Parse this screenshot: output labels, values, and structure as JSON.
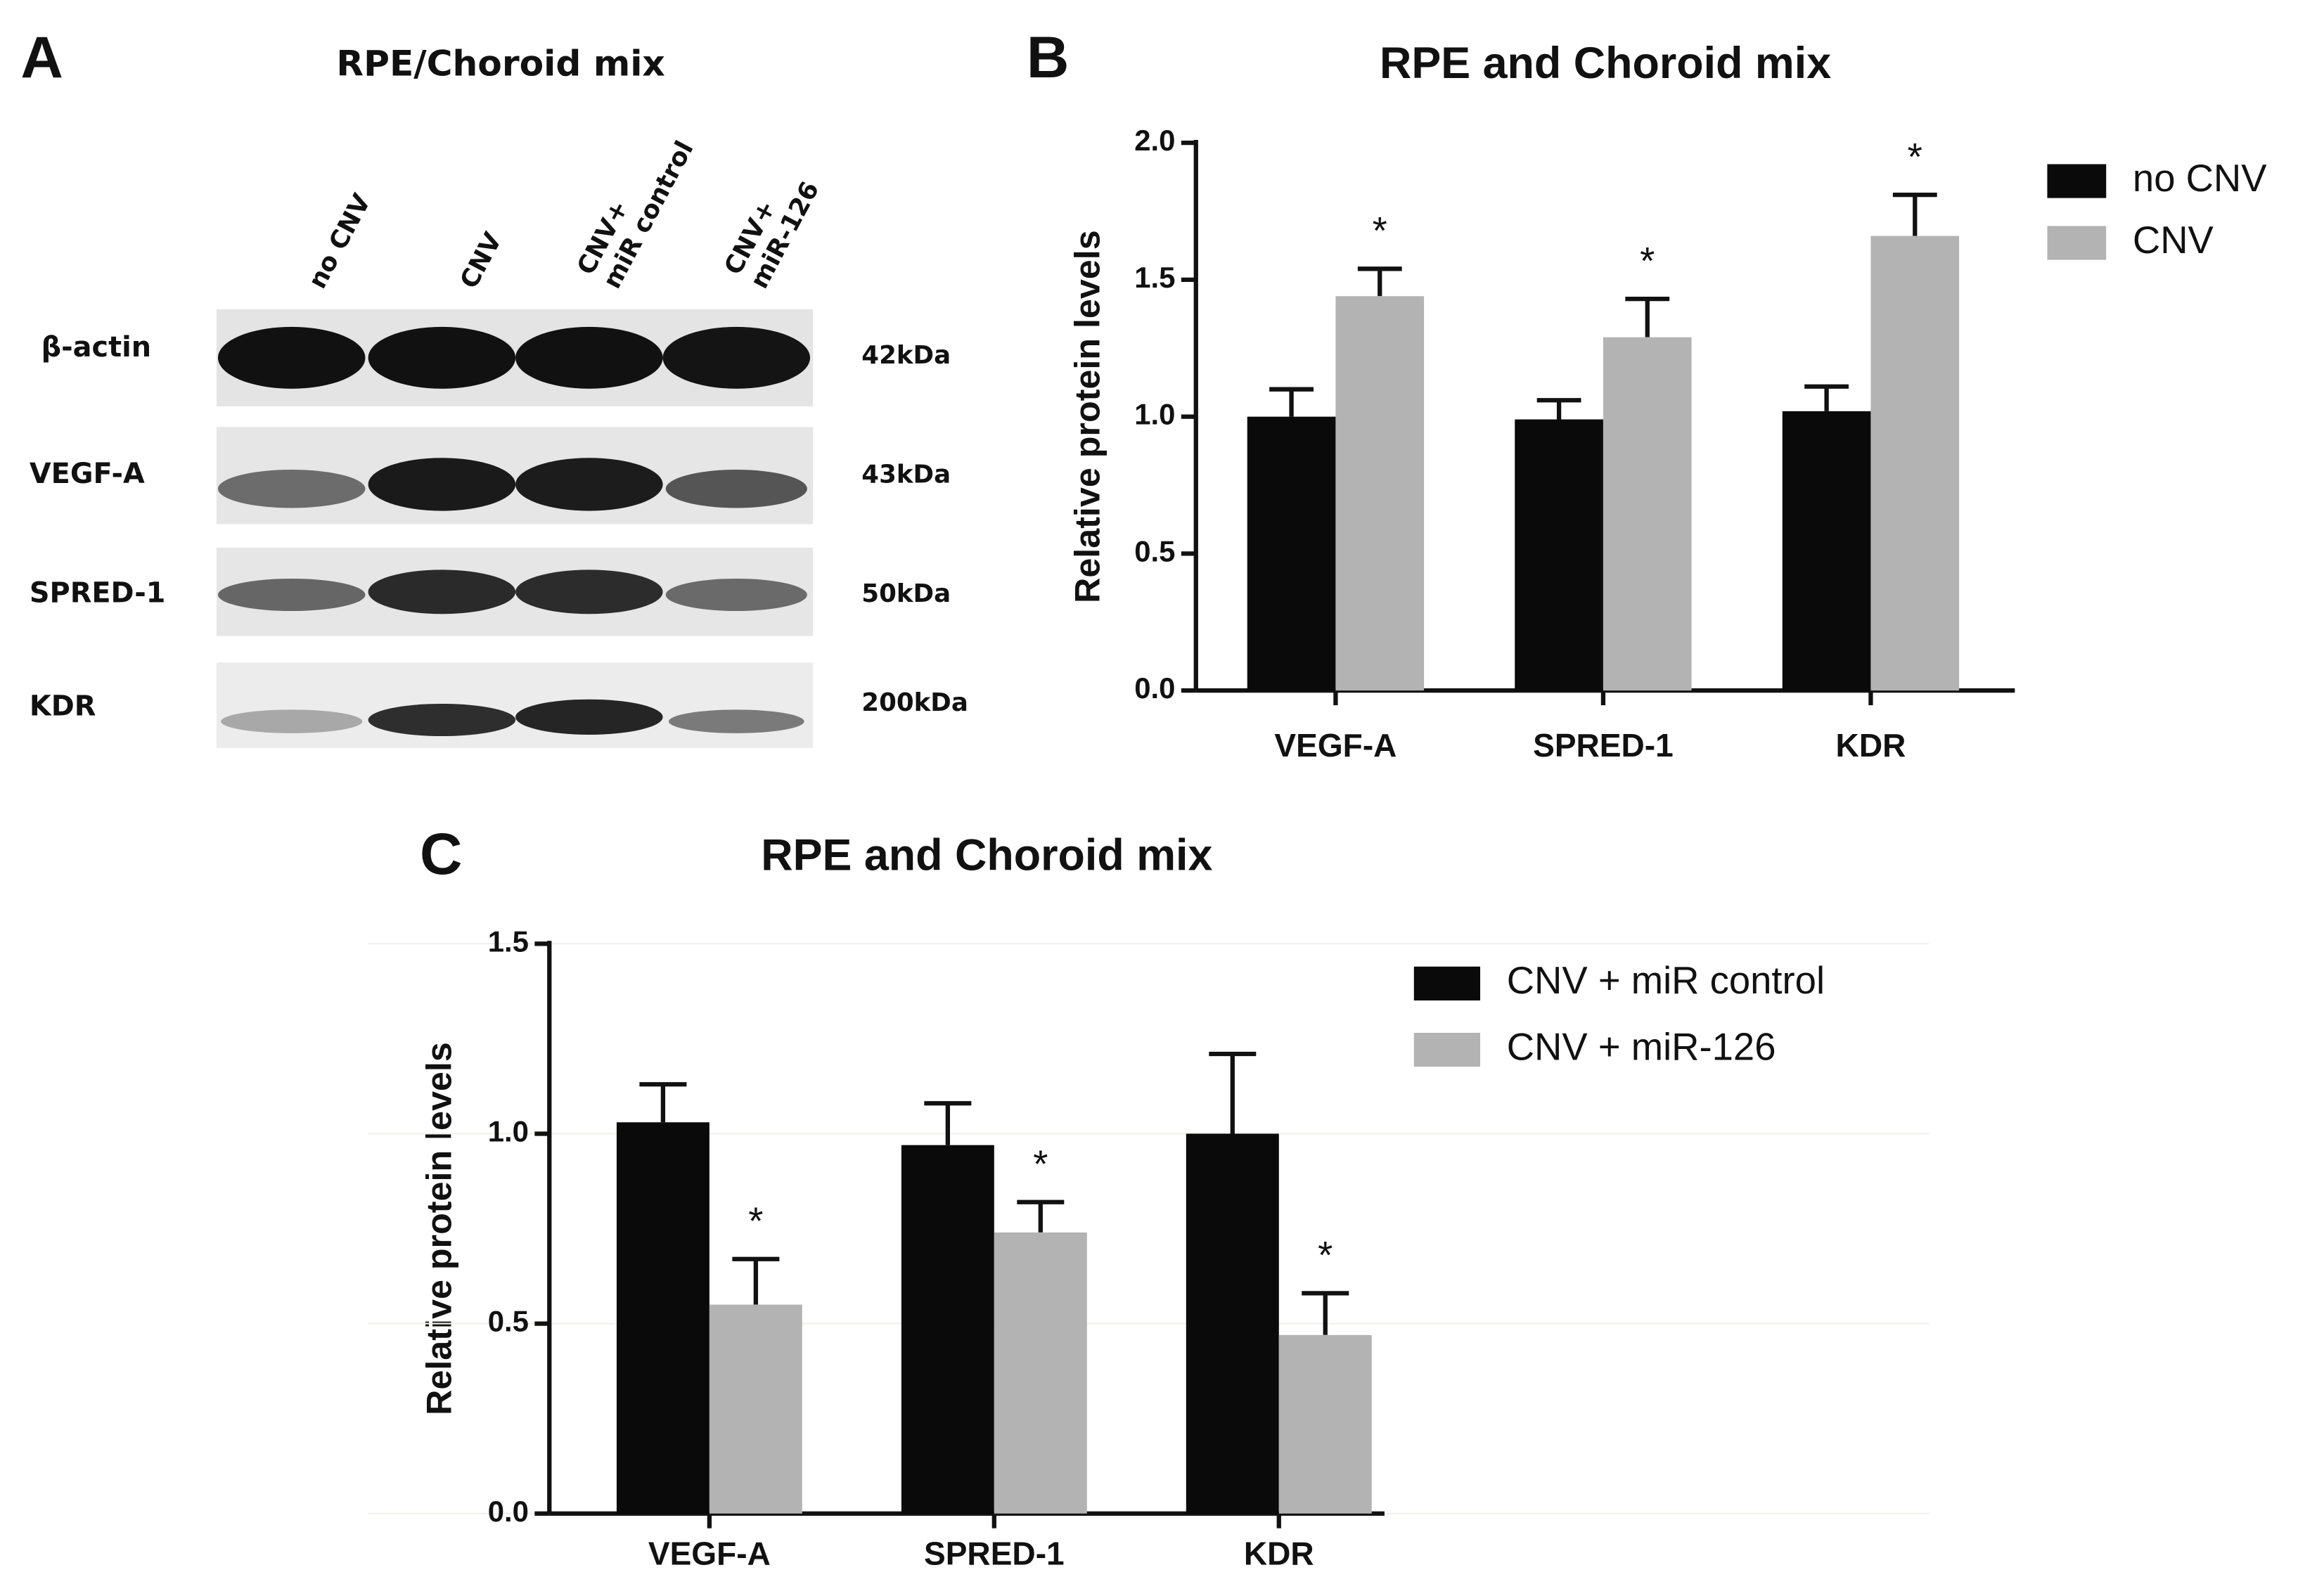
{
  "panel_a": {
    "panel_label": "A",
    "title": "RPE/Choroid mix",
    "lanes": [
      [
        "no CNV"
      ],
      [
        "CNV"
      ],
      [
        "CNV+",
        "miR control"
      ],
      [
        "CNV+",
        "miR-126"
      ]
    ],
    "rows": [
      {
        "label": "β-actin",
        "size": "42kDa"
      },
      {
        "label": "VEGF-A",
        "size": "43kDa"
      },
      {
        "label": "SPRED-1",
        "size": "50kDa"
      },
      {
        "label": "KDR",
        "size": "200kDa"
      }
    ]
  },
  "chart_data": [
    {
      "type": "bar",
      "panel_label": "B",
      "title": "RPE and Choroid mix",
      "y_label": "Relative protein levels",
      "categories": [
        "VEGF-A",
        "SPRED-1",
        "KDR"
      ],
      "series": [
        {
          "name": "no CNV",
          "color": "#0a0a0a",
          "values": [
            1.0,
            0.99,
            1.02
          ],
          "errors": [
            0.1,
            0.07,
            0.09
          ]
        },
        {
          "name": "CNV",
          "color": "#b3b3b3",
          "values": [
            1.44,
            1.29,
            1.66
          ],
          "errors": [
            0.1,
            0.14,
            0.15
          ],
          "markers": [
            "*",
            "*",
            "*"
          ]
        }
      ],
      "ylim": [
        0,
        2
      ],
      "yticks": [
        {
          "value": 0,
          "label": "0.0"
        },
        {
          "value": 0.5,
          "label": "0.5"
        },
        {
          "value": 1,
          "label": "1.0"
        },
        {
          "value": 1.5,
          "label": "1.5"
        },
        {
          "value": 2,
          "label": "2.0"
        }
      ],
      "grid": false,
      "legend": "right"
    },
    {
      "type": "bar",
      "panel_label": "C",
      "title": "RPE and Choroid mix",
      "y_label": "Relative protein levels",
      "categories": [
        "VEGF-A",
        "SPRED-1",
        "KDR"
      ],
      "series": [
        {
          "name": "CNV + miR control",
          "color": "#0a0a0a",
          "values": [
            1.03,
            0.97,
            1.0
          ],
          "errors": [
            0.1,
            0.11,
            0.21
          ]
        },
        {
          "name": "CNV + miR-126",
          "color": "#b3b3b3",
          "values": [
            0.55,
            0.74,
            0.47
          ],
          "errors": [
            0.12,
            0.08,
            0.11
          ],
          "markers": [
            "*",
            "*",
            "*"
          ]
        }
      ],
      "ylim": [
        0,
        1.5
      ],
      "yticks": [
        {
          "value": 0,
          "label": "0.0"
        },
        {
          "value": 0.5,
          "label": "0.5"
        },
        {
          "value": 1,
          "label": "1.0"
        },
        {
          "value": 1.5,
          "label": "1.5"
        }
      ],
      "grid": true,
      "legend": "right"
    }
  ]
}
